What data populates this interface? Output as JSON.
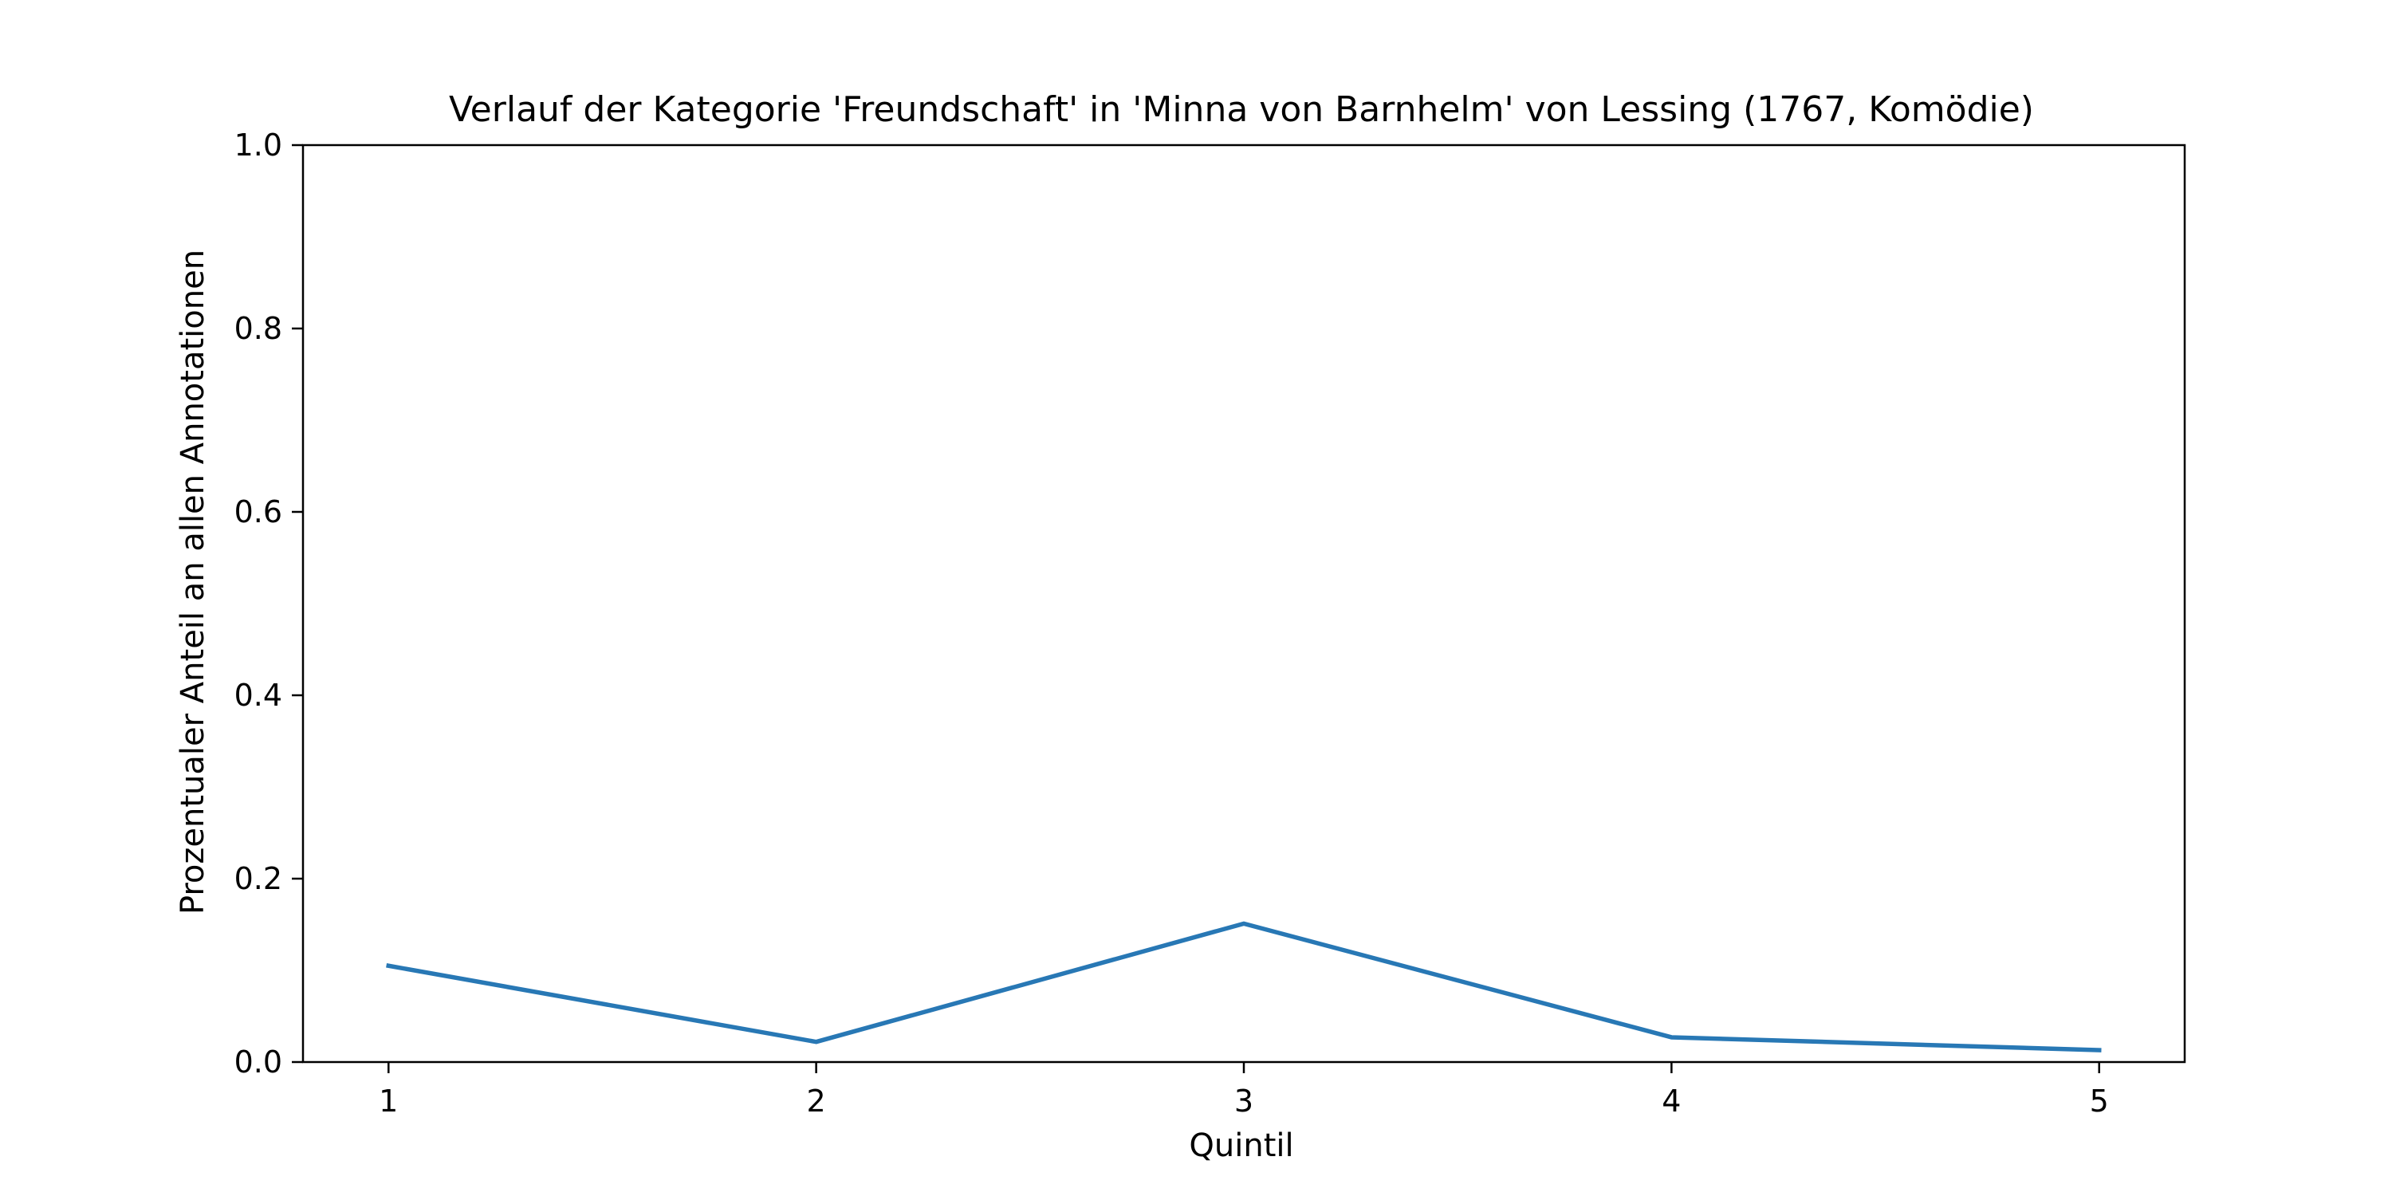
{
  "chart_data": {
    "type": "line",
    "title": "Verlauf der Kategorie 'Freundschaft' in 'Minna von Barnhelm' von Lessing (1767, Komödie)",
    "xlabel": "Quintil",
    "ylabel": "Prozentualer Anteil an allen Annotationen",
    "x": [
      1,
      2,
      3,
      4,
      5
    ],
    "x_tick_labels": [
      "1",
      "2",
      "3",
      "4",
      "5"
    ],
    "xlim": [
      0.8,
      5.2
    ],
    "ylim": [
      0.0,
      1.0
    ],
    "y_ticks": [
      0.0,
      0.2,
      0.4,
      0.6,
      0.8,
      1.0
    ],
    "y_tick_labels": [
      "0.0",
      "0.2",
      "0.4",
      "0.6",
      "0.8",
      "1.0"
    ],
    "grid": false,
    "series": [
      {
        "values": [
          0.105,
          0.022,
          0.151,
          0.027,
          0.013
        ],
        "color": "#2878b5"
      }
    ]
  }
}
